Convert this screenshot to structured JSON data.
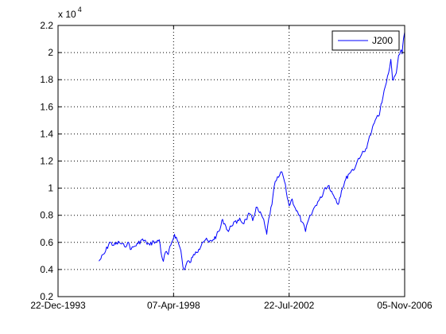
{
  "chart_data": {
    "type": "line",
    "title": "",
    "xlabel": "",
    "ylabel": "",
    "y_multiplier_label": "x 10",
    "y_multiplier_exponent": "4",
    "x_tick_labels": [
      "22-Dec-1993",
      "07-Apr-1998",
      "22-Jul-2002",
      "05-Nov-2006"
    ],
    "x_ticks": [
      "1993-12-22",
      "1998-04-07",
      "2002-07-22",
      "2006-11-05"
    ],
    "xlim": [
      "1993-12-22",
      "2006-11-05"
    ],
    "y_ticks": [
      0.2,
      0.4,
      0.6,
      0.8,
      1,
      1.2,
      1.4,
      1.6,
      1.8,
      2,
      2.2
    ],
    "y_tick_labels": [
      "0.2",
      "0.4",
      "0.6",
      "0.8",
      "1",
      "1.2",
      "1.4",
      "1.6",
      "1.8",
      "2",
      "2.2"
    ],
    "ylim": [
      0.2,
      2.2
    ],
    "grid": true,
    "legend_position": "top-right",
    "colors": {
      "series": "#0000ff",
      "axes": "#000000",
      "grid": "#000000",
      "background": "#ffffff"
    },
    "series": [
      {
        "name": "J200",
        "x": [
          "1995-06-30",
          "1995-09-15",
          "1995-11-20",
          "1996-01-20",
          "1996-04-01",
          "1996-06-10",
          "1996-07-25",
          "1996-09-10",
          "1996-10-20",
          "1996-12-10",
          "1997-01-30",
          "1997-04-01",
          "1997-05-20",
          "1997-07-10",
          "1997-08-20",
          "1997-09-25",
          "1997-10-28",
          "1997-11-20",
          "1997-12-20",
          "1998-01-25",
          "1998-03-01",
          "1998-04-20",
          "1998-05-25",
          "1998-06-20",
          "1998-07-15",
          "1998-08-12",
          "1998-09-05",
          "1998-10-10",
          "1998-11-15",
          "1998-12-20",
          "1999-02-01",
          "1999-03-15",
          "1999-05-01",
          "1999-06-15",
          "1999-08-01",
          "1999-09-25",
          "1999-11-10",
          "1999-12-30",
          "2000-02-01",
          "2000-03-15",
          "2000-04-20",
          "2000-05-25",
          "2000-07-01",
          "2000-08-10",
          "2000-09-20",
          "2000-11-01",
          "2000-12-15",
          "2001-02-01",
          "2001-03-15",
          "2001-05-01",
          "2001-06-15",
          "2001-08-01",
          "2001-09-05",
          "2001-09-21",
          "2001-10-20",
          "2001-12-01",
          "2002-01-15",
          "2002-03-01",
          "2002-04-15",
          "2002-05-20",
          "2002-06-15",
          "2002-07-22",
          "2002-09-01",
          "2002-10-15",
          "2002-12-01",
          "2003-01-15",
          "2003-03-01",
          "2003-04-01",
          "2003-05-15",
          "2003-07-01",
          "2003-08-15",
          "2003-10-01",
          "2003-11-15",
          "2004-01-15",
          "2004-03-01",
          "2004-04-15",
          "2004-05-15",
          "2004-07-01",
          "2004-08-15",
          "2004-10-01",
          "2004-11-15",
          "2005-01-01",
          "2005-02-15",
          "2005-04-01",
          "2005-05-15",
          "2005-07-01",
          "2005-08-15",
          "2005-10-01",
          "2005-11-15",
          "2006-01-01",
          "2006-02-15",
          "2006-04-01",
          "2006-05-01",
          "2006-05-25",
          "2006-06-15",
          "2006-07-15",
          "2006-08-15",
          "2006-09-15",
          "2006-10-01",
          "2006-10-20",
          "2006-11-05"
        ],
        "values": [
          0.462,
          0.52,
          0.6,
          0.58,
          0.6,
          0.57,
          0.6,
          0.55,
          0.57,
          0.59,
          0.62,
          0.6,
          0.58,
          0.61,
          0.6,
          0.62,
          0.5,
          0.46,
          0.53,
          0.51,
          0.58,
          0.66,
          0.62,
          0.58,
          0.54,
          0.42,
          0.4,
          0.46,
          0.45,
          0.49,
          0.53,
          0.55,
          0.6,
          0.62,
          0.6,
          0.62,
          0.65,
          0.7,
          0.77,
          0.72,
          0.68,
          0.72,
          0.75,
          0.74,
          0.78,
          0.74,
          0.77,
          0.81,
          0.76,
          0.86,
          0.82,
          0.78,
          0.7,
          0.66,
          0.78,
          0.88,
          1.05,
          1.08,
          1.12,
          1.05,
          0.97,
          0.87,
          0.92,
          0.85,
          0.8,
          0.75,
          0.68,
          0.75,
          0.8,
          0.86,
          0.9,
          0.93,
          1.0,
          1.02,
          0.96,
          0.92,
          0.88,
          0.98,
          1.05,
          1.1,
          1.13,
          1.15,
          1.22,
          1.25,
          1.27,
          1.35,
          1.42,
          1.5,
          1.53,
          1.63,
          1.75,
          1.85,
          1.95,
          1.8,
          1.82,
          1.85,
          1.98,
          2.02,
          1.99,
          2.1,
          2.15
        ]
      }
    ]
  }
}
